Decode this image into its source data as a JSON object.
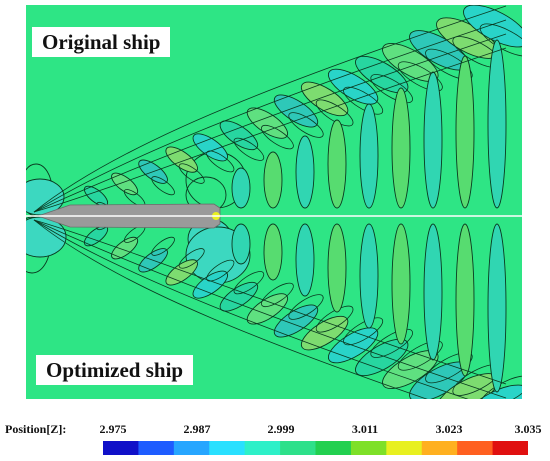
{
  "chart_data": {
    "type": "heatmap",
    "panels": [
      {
        "label": "Original ship",
        "position": "top"
      },
      {
        "label": "Optimized ship",
        "position": "bottom"
      }
    ],
    "colorbar": {
      "title": "Position[Z]:",
      "ticks": [
        "2.975",
        "2.987",
        "2.999",
        "3.011",
        "3.023",
        "3.035"
      ],
      "range": [
        2.975,
        3.035
      ],
      "colors": [
        "#1010c8",
        "#1e5cff",
        "#27a6ff",
        "#29e0ff",
        "#2ef0c8",
        "#2ee08a",
        "#22d050",
        "#7ee028",
        "#e8f020",
        "#ffb020",
        "#ff6020",
        "#e01010"
      ]
    },
    "background_color": "#2ee585",
    "hull_color": "#9a9a9a"
  }
}
